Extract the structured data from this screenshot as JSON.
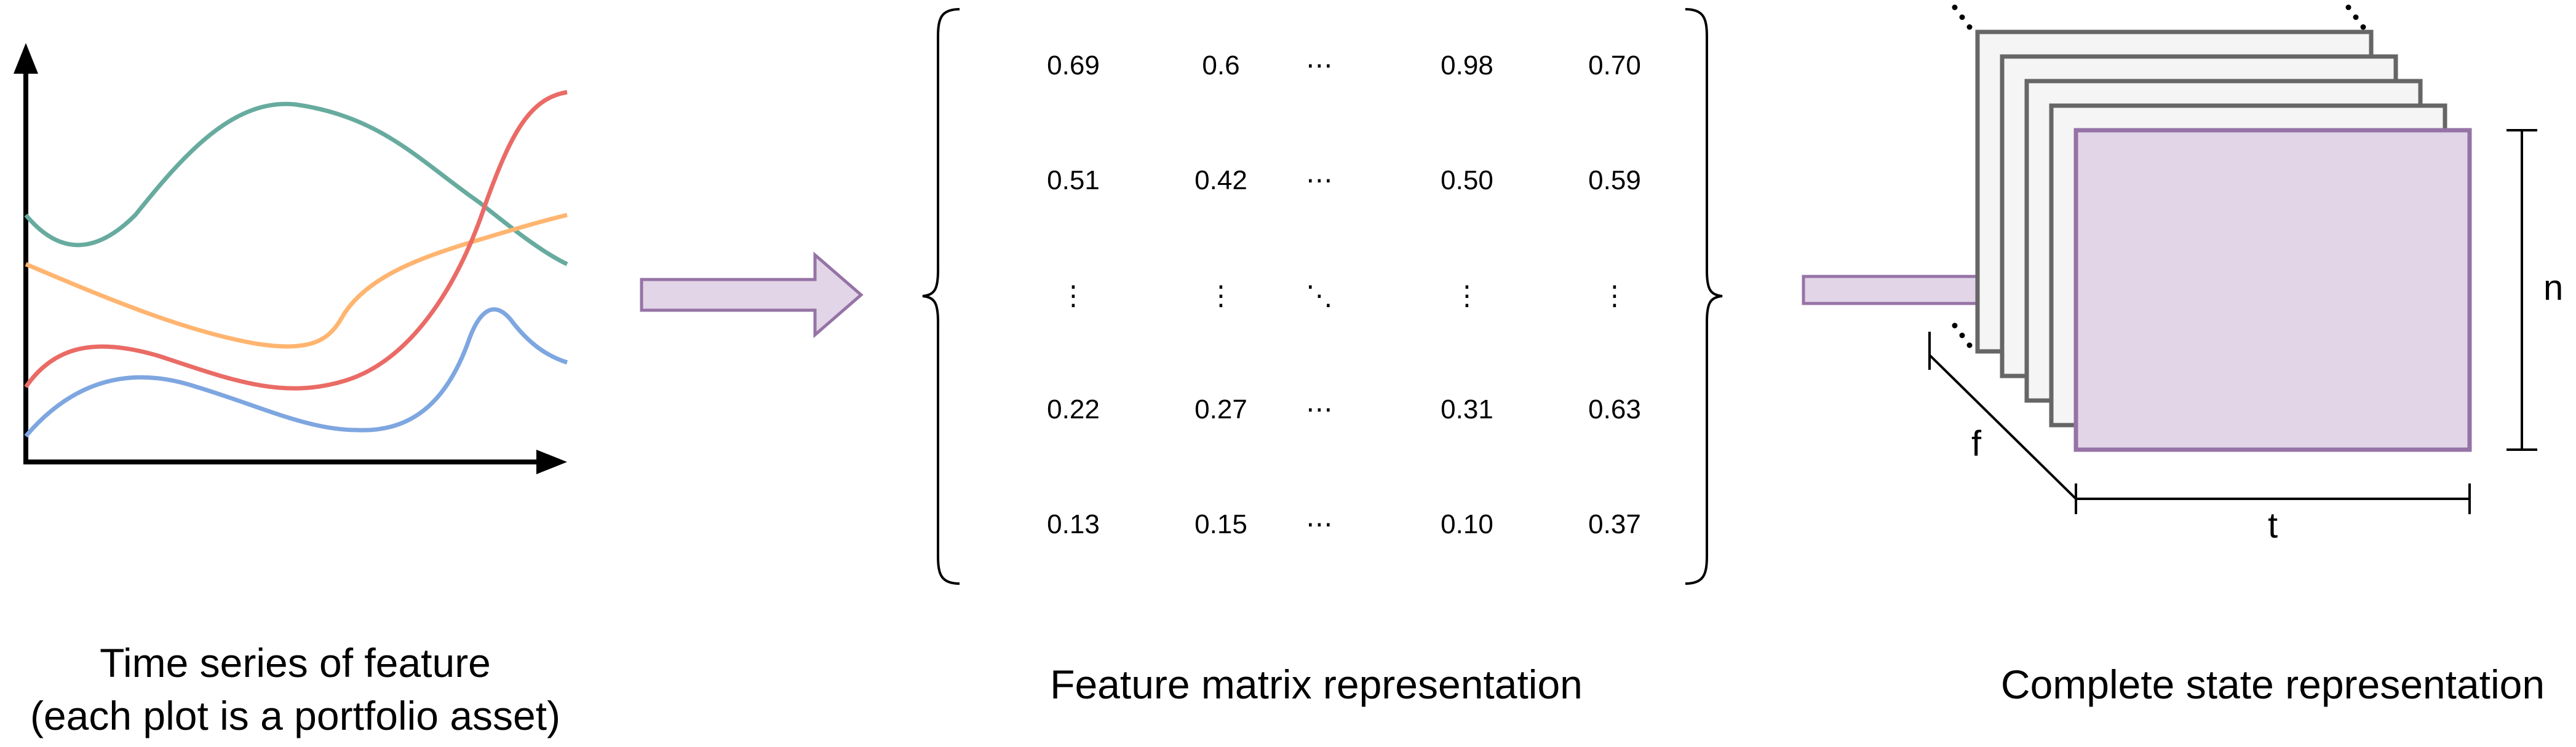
{
  "panels": {
    "time_series": {
      "caption_line1": "Time series of feature",
      "caption_line2": "(each plot is a portfolio asset)",
      "series_colors": [
        "#67AB9F",
        "#EA6B66",
        "#FFB570",
        "#7EA6E0"
      ]
    },
    "feature_matrix": {
      "caption": "Feature matrix representation",
      "rows": [
        [
          "0.69",
          "0.6",
          "⋯",
          "0.98",
          "0.70"
        ],
        [
          "0.51",
          "0.42",
          "⋯",
          "0.50",
          "0.59"
        ],
        [
          "⋮",
          "⋮",
          "⋱",
          "⋮",
          "⋮"
        ],
        [
          "0.22",
          "0.27",
          "⋯",
          "0.31",
          "0.63"
        ],
        [
          "0.13",
          "0.15",
          "⋯",
          "0.10",
          "0.37"
        ]
      ]
    },
    "state": {
      "caption": "Complete state representation",
      "dim_n": "n",
      "dim_t": "t",
      "dim_f": "f",
      "front_fill": "#E1D5E7",
      "front_stroke": "#9673A6",
      "layer_fill": "#F5F5F5",
      "layer_stroke": "#666666"
    }
  },
  "arrows": {
    "fill": "#E1D5E7",
    "stroke": "#9673A6"
  }
}
